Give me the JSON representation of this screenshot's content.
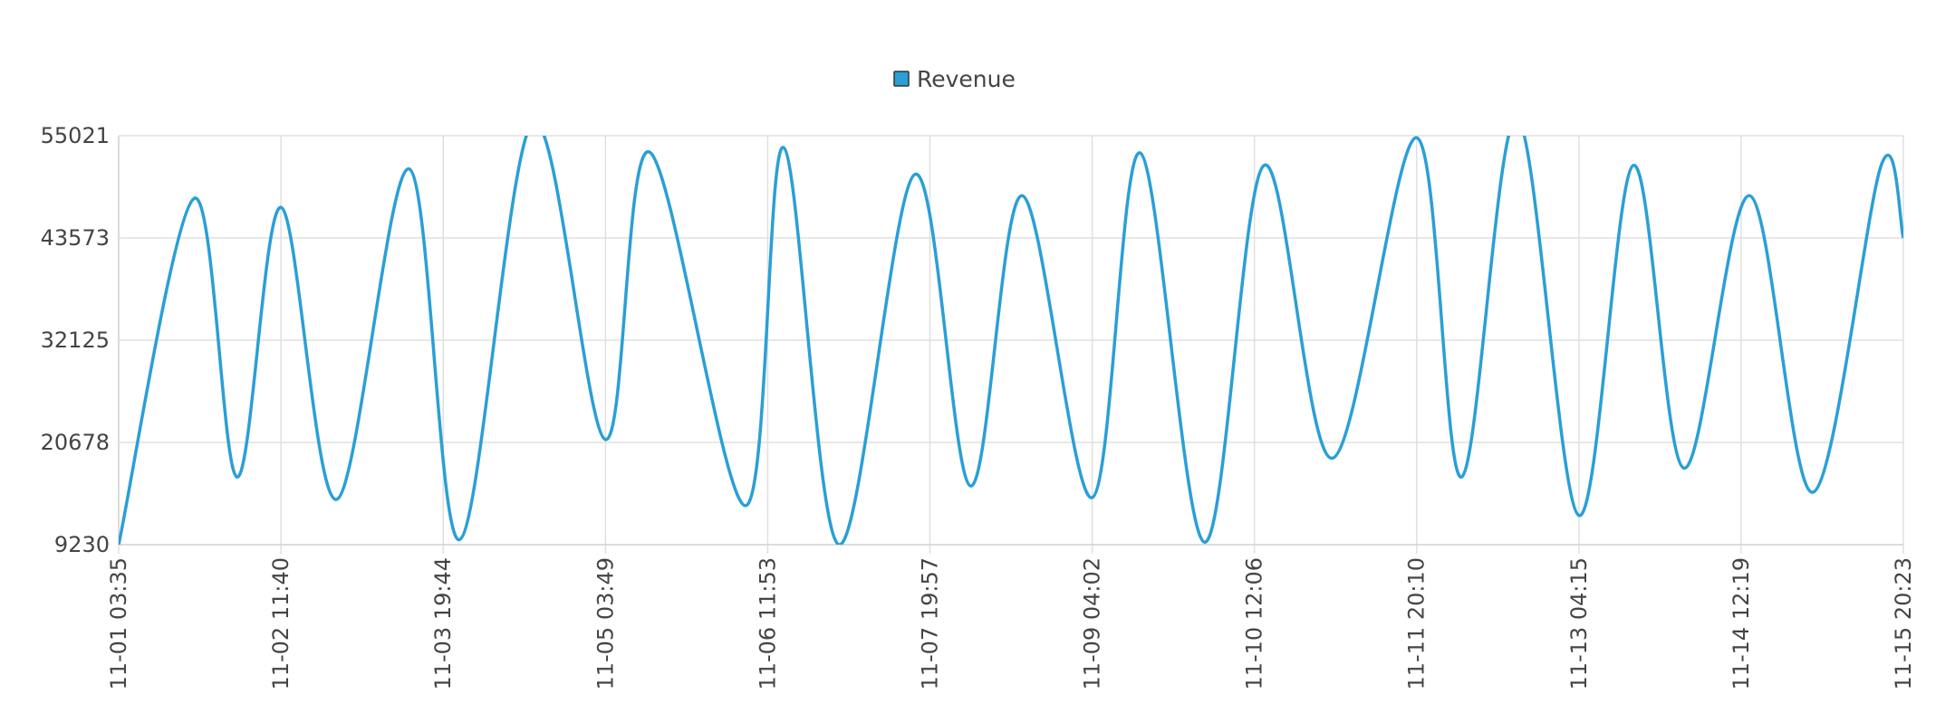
{
  "chart_data": {
    "type": "line",
    "legend": {
      "position": "top-center",
      "entries": [
        {
          "label": "Revenue",
          "color": "#2a9fd6"
        }
      ]
    },
    "x_ticks": [
      "11-01 03:35",
      "11-02 11:40",
      "11-03 19:44",
      "11-05 03:49",
      "11-06 11:53",
      "11-07 19:57",
      "11-09 04:02",
      "11-10 12:06",
      "11-11 20:10",
      "11-13 04:15",
      "11-14 12:19",
      "11-15 20:23"
    ],
    "y_ticks": [
      9230,
      20678,
      32125,
      43573,
      55021
    ],
    "ylim": [
      9230,
      55021
    ],
    "grid": true,
    "series": [
      {
        "name": "Revenue",
        "color": "#2a9fd6",
        "points": [
          [
            "11-01 03:35",
            9230
          ],
          [
            "11-01 18:30",
            48000
          ],
          [
            "11-02 03:00",
            16800
          ],
          [
            "11-02 11:40",
            47000
          ],
          [
            "11-02 22:40",
            14300
          ],
          [
            "11-03 13:00",
            51300
          ],
          [
            "11-03 23:00",
            9800
          ],
          [
            "11-04 13:30",
            56500
          ],
          [
            "11-05 03:49",
            21000
          ],
          [
            "11-05 12:30",
            53200
          ],
          [
            "11-06 07:30",
            13600
          ],
          [
            "11-06 15:00",
            53700
          ],
          [
            "11-07 02:00",
            9230
          ],
          [
            "11-07 17:00",
            50700
          ],
          [
            "11-08 04:00",
            15800
          ],
          [
            "11-08 14:10",
            48300
          ],
          [
            "11-09 04:02",
            14500
          ],
          [
            "11-09 13:30",
            53100
          ],
          [
            "11-10 02:15",
            9500
          ],
          [
            "11-10 14:00",
            51700
          ],
          [
            "11-11 03:30",
            18900
          ],
          [
            "11-11 20:10",
            54800
          ],
          [
            "11-12 05:00",
            16800
          ],
          [
            "11-12 16:00",
            57000
          ],
          [
            "11-13 04:15",
            12500
          ],
          [
            "11-13 15:00",
            51700
          ],
          [
            "11-14 01:00",
            17800
          ],
          [
            "11-14 14:00",
            48300
          ],
          [
            "11-15 02:30",
            15100
          ],
          [
            "11-15 16:00",
            51700
          ],
          [
            "11-15 20:23",
            43573
          ]
        ]
      }
    ]
  }
}
